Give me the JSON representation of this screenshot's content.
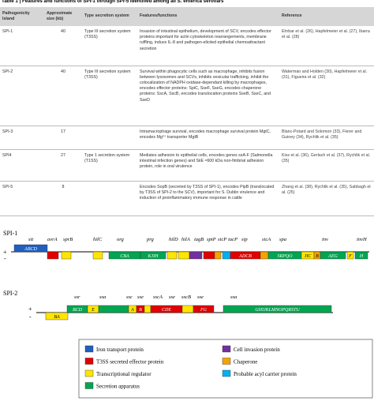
{
  "table": {
    "title": "Table 1 | Features and functions of SPI-1 through SPI-5 identified among all S. enterica serovars",
    "header": [
      "Pathogenicity Island",
      "Approximate size (kb)",
      "Type secretion system",
      "Features/functions",
      "Reference"
    ],
    "rows": [
      [
        "SPI-1",
        "40",
        "Type III secretion system (T3SS)",
        "Invasion of intestinal epithelium, development of SCV, encodes effector proteins important for actin cytoskeleton rearrangements, membrane ruffling, induce IL-8 and pathogen-elicited epithelial chemoattractant secretion",
        "Ehrbar et al. (26), Hapfelmeier et al. (27), Ibarra et al. (28)"
      ],
      [
        "SPI-2",
        "40",
        "Type III secretion system (T3SS)",
        "Survival within phagocytic cells such as macrophage, inhibits fusion between lysosomes and SCVs, inhibits vesicular trafficking, inhibit the colocalization of NADPH oxidase-dependant killing by macrophages, encodes effector proteins: SpiC, SseF, SseG, encodes chaperone proteins: SscA, SscB, encodes translocation proteins SseB, SseC, and SseD",
        "Waterman and Holden (30), Hapfelmeier et al. (31), Figueira et al. (32)"
      ],
      [
        "SPI-3",
        "17",
        "",
        "Intramacrophage survival, encodes macrophage survival protein MgtC, encodes Mg²⁺ transporter MgtB",
        "Blanc-Potard and Solomon (33), Fierer and Guiney (34), Rychlik et al. (35)"
      ],
      [
        "SPI4",
        "27",
        "Type 1 secretion system (T1SS)",
        "Mediates adhesion to epithelial cells, encodes genes ssA-F (Salmonella intestinal infection genes) and SiiE ≈600 kDa non-fimbrial adhesion protein, role in oral virulence",
        "Kiss et al. (36), Gerlach et al. (37), Rychlik et al. (35)"
      ],
      [
        "SPI-5",
        "8",
        "",
        "Encodes SopB (secreted by T3SS of SPI-1), encodes PipB (translocated by T3SS of SPI-2 to the SCV), important for S. Dublin virulence and induction of proinflammatory immune response in cattle",
        "Zhang et al. (38), Rychlik et al. (35), Sabbagh et al. (25)"
      ]
    ]
  },
  "figure": {
    "spi1": {
      "label": "SPI-1",
      "plus": "+",
      "minus": "-",
      "genes": [
        "sit",
        "avrA",
        "sprB",
        "hilC",
        "org",
        "prg",
        "hilD",
        "hilA",
        "iagB",
        "sptP",
        "sicP",
        "iacP",
        "sip",
        "sicA",
        "spa",
        "inv",
        "invH"
      ],
      "boxes": [
        "ABCD",
        "CBA",
        "KJIH",
        "ADCB",
        "SRPQO",
        "JIC",
        "B",
        "AEG",
        "F",
        "H"
      ]
    },
    "spi2": {
      "label": "SPI-2",
      "plus": "+",
      "minus": "-",
      "genes": [
        "ssr",
        "ssa",
        "ssc",
        "sse",
        "sscA",
        "sse",
        "sscB",
        "sse",
        "ssa"
      ],
      "boxes": [
        "BCD",
        "E",
        "A",
        "B",
        "CDE",
        "FG",
        "GHIJKLMNOPQRSTU",
        "BA"
      ]
    }
  },
  "legend": [
    "Iron transport protein",
    "T3SS secreted effector protein",
    "Transcriptional regulator",
    "Secretion apparatus",
    "Cell invasion protein",
    "Chaperone",
    "Probable acyl carrier protein"
  ]
}
